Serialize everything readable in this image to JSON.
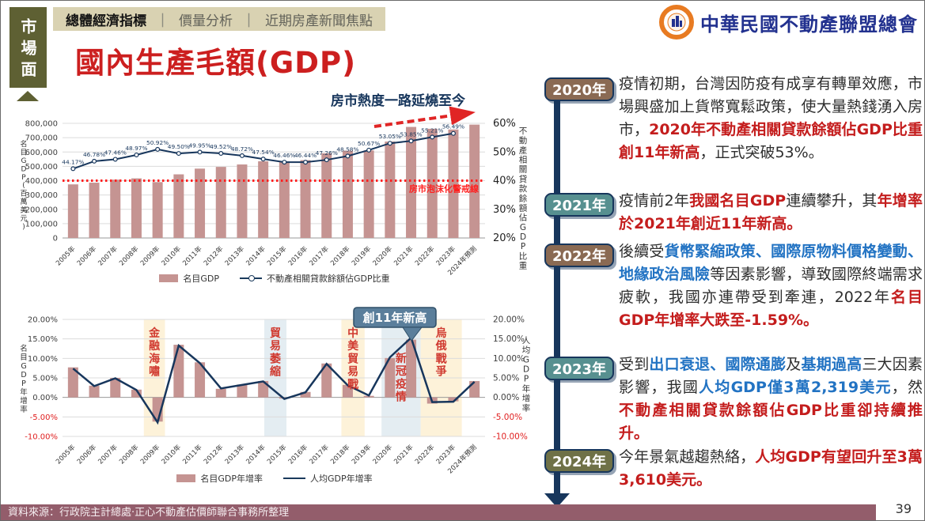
{
  "slide": {
    "tab": {
      "label": "市場面"
    },
    "nav": {
      "separator": "｜",
      "items": [
        {
          "label": "總體經濟指標",
          "active": true
        },
        {
          "label": "價量分析",
          "active": false
        },
        {
          "label": "近期房產新聞焦點",
          "active": false
        }
      ]
    },
    "logo": {
      "org": "中華民國不動產聯盟總會"
    },
    "title": "國內生產毛額(GDP)",
    "footer": {
      "source": "資料來源：行政院主計總處‧正心不動產估價師聯合事務所整理",
      "page": "39"
    }
  },
  "colors": {
    "accent_red": "#cc1f1f",
    "navy": "#17365c",
    "bar_pink": "#c59492",
    "grid": "#dcdcdc",
    "axis": "#9a9a9a",
    "tick_text": "#3f3f3f",
    "neg_red": "#e02020",
    "warning_red": "#ff2020",
    "anno_red": "#d03a30",
    "band_yellow": "#fdf2d9",
    "band_blue": "#e4edf2",
    "callout_blue": "#5a7e9b",
    "callout_border": "#2f4f68",
    "arrow_red": "#e02525"
  },
  "chart_data": [
    {
      "type": "bar",
      "subtype": "combo-bar-line-dual-axis",
      "categories": [
        "2005年",
        "2006年",
        "2007年",
        "2008年",
        "2009年",
        "2010年",
        "2011年",
        "2012年",
        "2013年",
        "2014年",
        "2015年",
        "2016年",
        "2017年",
        "2018年",
        "2019年",
        "2020年",
        "2021年",
        "2022年",
        "2023年",
        "2024年預測"
      ],
      "bar_series": {
        "name": "名目GDP",
        "values": [
          374000,
          386000,
          407000,
          416000,
          390000,
          444000,
          484000,
          496000,
          513000,
          535000,
          534000,
          543000,
          591000,
          609000,
          611000,
          673000,
          775000,
          762000,
          757000,
          791000
        ]
      },
      "line_series": {
        "name": "不動產相關貸款餘額佔GDP比重",
        "values": [
          44.17,
          46.78,
          47.46,
          48.97,
          50.92,
          49.5,
          49.95,
          49.52,
          48.72,
          47.54,
          46.46,
          46.44,
          47.26,
          48.58,
          50.67,
          53.05,
          53.85,
          55.21,
          56.49
        ],
        "labels": [
          "44.17%",
          "46.78%",
          "47.46%",
          "48.97%",
          "50.92%",
          "49.50%",
          "49.95%",
          "49.52%",
          "48.72%",
          "47.54%",
          "46.46%",
          "46.44%",
          "47.26%",
          "48.58%",
          "50.67%",
          "53.05%",
          "53.85%",
          "55.21%",
          "56.49%"
        ]
      },
      "left_axis": {
        "title": "名目GDP(百萬美元)",
        "min": 0,
        "max": 800000,
        "step": 100000
      },
      "right_axis": {
        "title": "不動產相關貸款餘額佔GDP比重",
        "min": 20,
        "max": 60,
        "step": 10
      },
      "threshold": {
        "value": 40,
        "label": "房市泡沫化警戒線"
      },
      "annotation": {
        "text": "房市熱度一路延燒至今"
      },
      "grid": true,
      "legend_position": "bottom"
    },
    {
      "type": "bar",
      "subtype": "combo-bar-line-dual-axis",
      "categories": [
        "2005年",
        "2006年",
        "2007年",
        "2008年",
        "2009年",
        "2010年",
        "2011年",
        "2012年",
        "2013年",
        "2014年",
        "2015年",
        "2016年",
        "2017年",
        "2018年",
        "2019年",
        "2020年",
        "2021年",
        "2022年",
        "2023年",
        "2024年預測"
      ],
      "bar_series": {
        "name": "名目GDP年增率",
        "values": [
          7.7,
          3.0,
          5.0,
          2.0,
          -6.2,
          13.5,
          9.0,
          2.2,
          3.3,
          4.2,
          -0.3,
          1.4,
          8.7,
          3.2,
          0.4,
          10.1,
          14.8,
          -1.59,
          -1.0,
          4.2
        ]
      },
      "line_series": {
        "name": "人均GDP年增率",
        "values": [
          7.4,
          2.9,
          4.9,
          1.9,
          -6.4,
          13.3,
          8.8,
          2.3,
          3.2,
          4.1,
          -0.4,
          1.3,
          8.6,
          3.1,
          0.5,
          10.3,
          15.3,
          -1.2,
          -1.1,
          4.0
        ]
      },
      "left_axis": {
        "title": "名目GDP年增率",
        "min": -10,
        "max": 20,
        "step": 5
      },
      "right_axis": {
        "title": "人均GDP年增率",
        "min": -10,
        "max": 20,
        "step": 5
      },
      "bands": [
        {
          "label": "金融海嘯",
          "from": 3.85,
          "to": 4.85,
          "color": "yellow",
          "label_pos": "top"
        },
        {
          "label": "貿易萎縮",
          "from": 9.55,
          "to": 10.6,
          "color": "blue",
          "label_pos": "top"
        },
        {
          "label": "中美貿易戰",
          "from": 13.2,
          "to": 14.3,
          "color": "yellow",
          "label_pos": "top"
        },
        {
          "label": "新冠疫情",
          "from": 15.1,
          "to": 16.95,
          "color": "blue",
          "label_pos": "bottom"
        },
        {
          "label": "烏俄戰爭",
          "from": 16.95,
          "to": 18.9,
          "color": "yellow",
          "label_pos": "top"
        }
      ],
      "callout": {
        "text": "創11年新高",
        "target_index": 16
      },
      "grid": true,
      "legend_position": "bottom"
    }
  ],
  "timeline": {
    "items": [
      {
        "year": "2020年",
        "badge_color": "#8a6a53",
        "runs": [
          {
            "t": "疫情初期，台灣因防疫有成享有轉單效應，市場興盛加上貨幣寬鬆政策，使大量熱錢湧入房市，"
          },
          {
            "t": "2020年不動產相關貸款餘額佔GDP比重創11年新高",
            "s": "red"
          },
          {
            "t": "，正式突破53%。"
          }
        ]
      },
      {
        "year": "2021年",
        "badge_color": "#579090",
        "runs": [
          {
            "t": "疫情前2年"
          },
          {
            "t": "我國名目GDP",
            "s": "red"
          },
          {
            "t": "連續攀升，其"
          },
          {
            "t": "年增率於2021年創近11年新高。",
            "s": "red"
          }
        ]
      },
      {
        "year": "2022年",
        "badge_color": "#8a6a53",
        "runs": [
          {
            "t": "後續受"
          },
          {
            "t": "貨幣緊縮政策、國際原物料價格變動、地緣政治風險",
            "s": "blue"
          },
          {
            "t": "等因素影響，導致國際終端需求疲軟，我國亦連帶受到牽連，2022年"
          },
          {
            "t": "名目GDP年增率大跌至-1.59%。",
            "s": "red"
          }
        ]
      },
      {
        "year": "2023年",
        "badge_color": "#579090",
        "runs": [
          {
            "t": "受到"
          },
          {
            "t": "出口衰退、國際通膨",
            "s": "blue"
          },
          {
            "t": "及"
          },
          {
            "t": "基期過高",
            "s": "blue"
          },
          {
            "t": "三大因素影響，我國"
          },
          {
            "t": "人均GDP僅3萬2,319美元",
            "s": "blue"
          },
          {
            "t": "，然"
          },
          {
            "t": "不動產相關貸款餘額佔GDP比重卻持續推升。",
            "s": "red"
          }
        ]
      },
      {
        "year": "2024年",
        "badge_color": "#6f7147",
        "runs": [
          {
            "t": "今年景氣越趨熱絡，"
          },
          {
            "t": "人均GDP有望回升至3萬3,610美元。",
            "s": "red"
          }
        ]
      }
    ]
  }
}
